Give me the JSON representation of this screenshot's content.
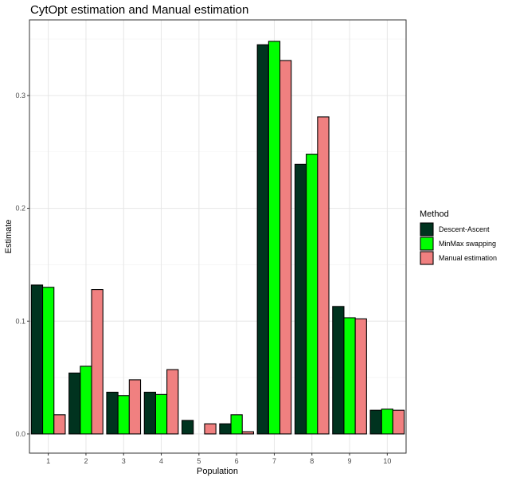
{
  "chart_data": {
    "type": "bar",
    "title": "CytOpt estimation and Manual estimation",
    "xlabel": "Population",
    "ylabel": "Estimate",
    "categories": [
      "1",
      "2",
      "3",
      "4",
      "5",
      "6",
      "7",
      "8",
      "9",
      "10"
    ],
    "y_ticks": [
      "0.0",
      "0.1",
      "0.2",
      "0.3"
    ],
    "ylim": [
      -0.017,
      0.367
    ],
    "grid": true,
    "legend": {
      "title": "Method",
      "position": "right"
    },
    "series": [
      {
        "name": "Descent-Ascent",
        "color": "#00331f",
        "values": [
          0.132,
          0.054,
          0.037,
          0.037,
          0.012,
          0.009,
          0.345,
          0.239,
          0.113,
          0.021
        ]
      },
      {
        "name": "MinMax swapping",
        "color": "#00ff00",
        "values": [
          0.13,
          0.06,
          0.034,
          0.035,
          0.0,
          0.017,
          0.348,
          0.248,
          0.103,
          0.022
        ]
      },
      {
        "name": "Manual estimation",
        "color": "#f08080",
        "values": [
          0.017,
          0.128,
          0.048,
          0.057,
          0.009,
          0.002,
          0.331,
          0.281,
          0.102,
          0.021
        ]
      }
    ]
  }
}
